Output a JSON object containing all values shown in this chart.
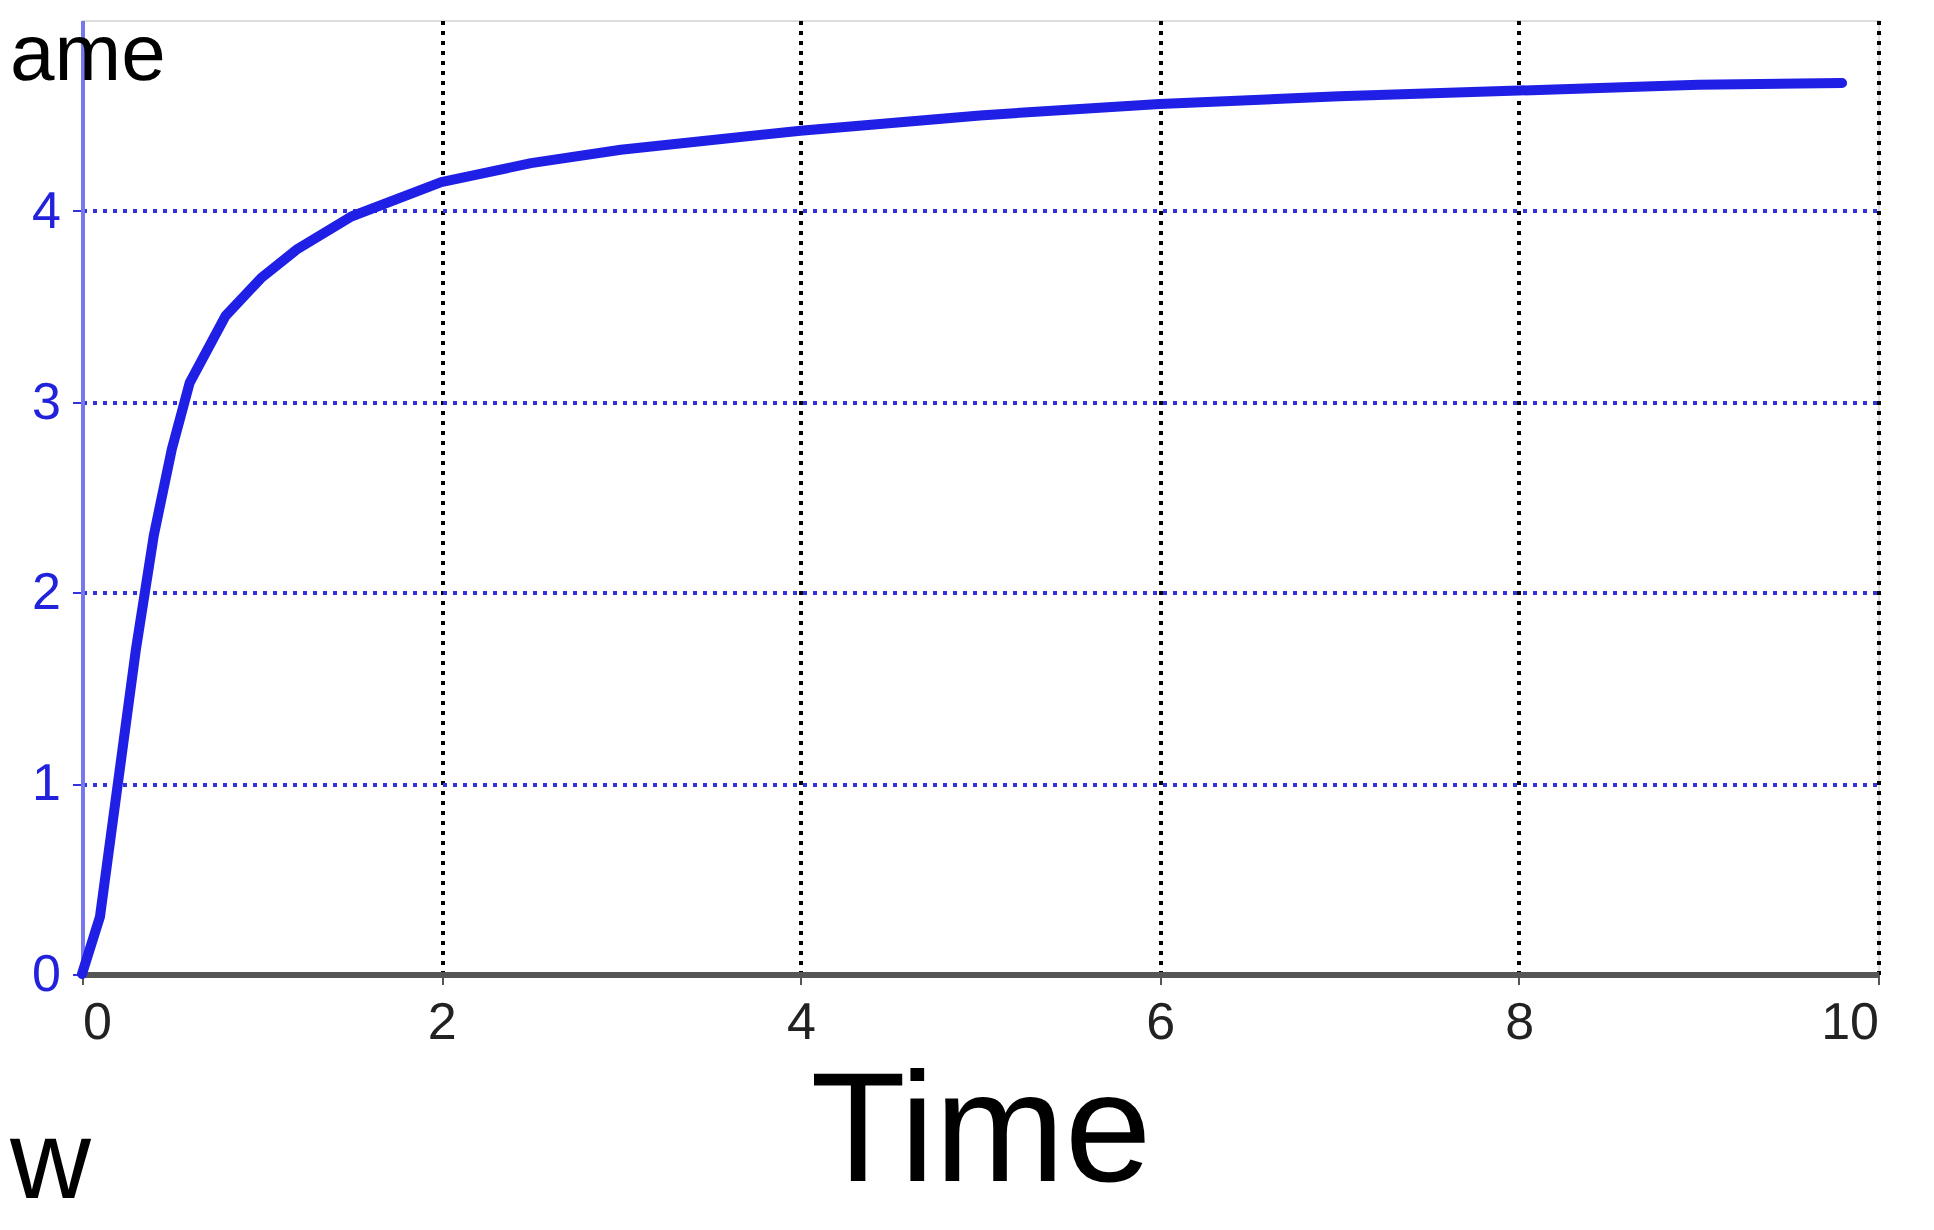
{
  "chart_data": {
    "type": "line",
    "xlabel": "Time",
    "x": [
      0,
      0.1,
      0.2,
      0.3,
      0.4,
      0.5,
      0.6,
      0.8,
      1.0,
      1.2,
      1.5,
      2,
      2.5,
      3,
      4,
      5,
      6,
      7,
      8,
      9,
      9.8
    ],
    "series": [
      {
        "color": "#1f1fe6",
        "values": [
          0,
          0.3,
          1.0,
          1.7,
          2.3,
          2.75,
          3.1,
          3.45,
          3.65,
          3.8,
          3.97,
          4.15,
          4.25,
          4.32,
          4.42,
          4.5,
          4.56,
          4.6,
          4.63,
          4.66,
          4.67
        ]
      }
    ],
    "xlim": [
      0,
      10
    ],
    "xticks": [
      0,
      2,
      4,
      6,
      8,
      10
    ],
    "ylim": [
      0,
      5
    ],
    "yticks": [
      0,
      1,
      2,
      3,
      4
    ],
    "grid": true,
    "marker": "none",
    "line_style": "solid",
    "annotations": [
      "ame",
      "w"
    ]
  }
}
